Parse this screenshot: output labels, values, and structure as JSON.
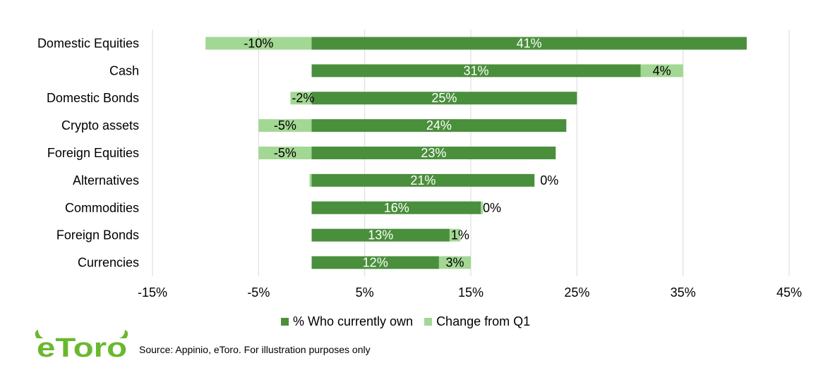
{
  "chart_data": {
    "type": "bar",
    "orientation": "horizontal",
    "stacked": true,
    "categories": [
      "Domestic Equities",
      "Cash",
      "Domestic Bonds",
      "Crypto assets",
      "Foreign Equities",
      "Alternatives",
      "Commodities",
      "Foreign Bonds",
      "Currencies"
    ],
    "series": [
      {
        "name": "% Who currently own",
        "color": "#4a8f3c",
        "values": [
          41,
          31,
          25,
          24,
          23,
          21,
          16,
          13,
          12
        ],
        "labels": [
          "41%",
          "31%",
          "25%",
          "24%",
          "23%",
          "21%",
          "16%",
          "13%",
          "12%"
        ]
      },
      {
        "name": "Change from Q1",
        "color": "#a3d794",
        "values": [
          -10,
          4,
          -2,
          -5,
          -5,
          0,
          0,
          1,
          3
        ],
        "labels": [
          "-10%",
          "4%",
          "-2%",
          "-5%",
          "-5%",
          "0%",
          "0%",
          "1%",
          "3%"
        ]
      }
    ],
    "xlim": [
      -15,
      45
    ],
    "xticks": [
      -15,
      -5,
      5,
      15,
      25,
      35,
      45
    ],
    "xtick_labels": [
      "-15%",
      "-5%",
      "5%",
      "15%",
      "25%",
      "35%",
      "45%"
    ],
    "grid": true,
    "legend": "bottom"
  },
  "legend": {
    "own_label": "% Who currently own",
    "change_label": "Change from Q1"
  },
  "footer": {
    "logo_text": "eToro",
    "source": "Source: Appinio, eToro. For illustration purposes only"
  }
}
